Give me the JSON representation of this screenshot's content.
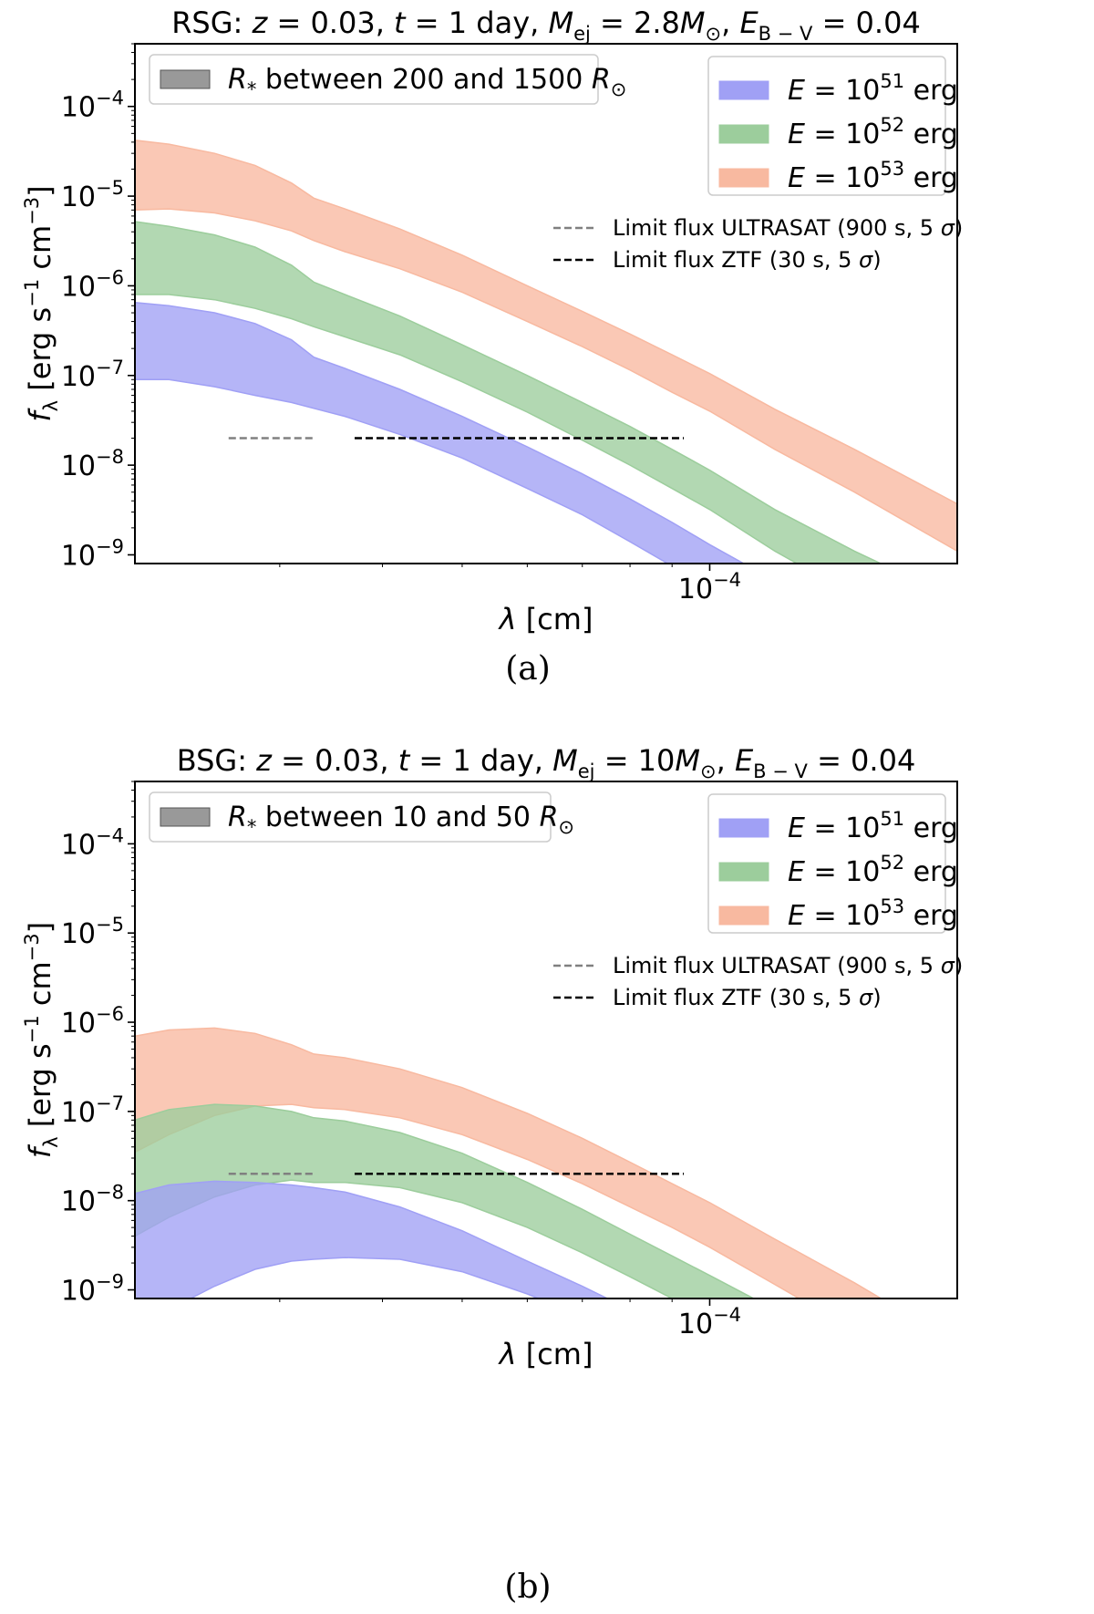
{
  "chart_data": [
    {
      "type": "area",
      "panel": "a",
      "caption": "(a)",
      "title": "RSG: z = 0.03, t = 1 day, M_ej = 2.8M⊙, E_B−V = 0.04",
      "title_parts": {
        "pre": "RSG: ",
        "z": "z",
        "z_val": " = 0.03, ",
        "t": "t",
        "t_val": " = 1 day, ",
        "M": "M",
        "M_sub": "ej",
        "M_val": " = 2.8",
        "M_unit": "M",
        "M_unit_sub": "⊙",
        "sep": ", ",
        "E": "E",
        "E_sub": "B − V",
        "E_val": " = 0.04"
      },
      "xlabel": {
        "sym": "λ",
        "unit": " [cm]"
      },
      "ylabel": {
        "sym": "f",
        "sub": "λ",
        "unit": " [erg s",
        "exp1": "−1",
        "mid": " cm",
        "exp2": "−3",
        "end": "]"
      },
      "xscale": "log",
      "yscale": "log",
      "xlim": [
        2e-05,
        0.0002
      ],
      "ylim": [
        8e-10,
        0.0005
      ],
      "yticks": [
        {
          "base": "10",
          "exp": "−4",
          "v": 0.0001
        },
        {
          "base": "10",
          "exp": "−5",
          "v": 1e-05
        },
        {
          "base": "10",
          "exp": "−6",
          "v": 1e-06
        },
        {
          "base": "10",
          "exp": "−7",
          "v": 1e-07
        },
        {
          "base": "10",
          "exp": "−8",
          "v": 1e-08
        },
        {
          "base": "10",
          "exp": "−9",
          "v": 1e-09
        }
      ],
      "xticks": [
        {
          "base": "10",
          "exp": "−4",
          "v": 0.0001
        }
      ],
      "legend_radius": {
        "sym": "R",
        "sub": "*",
        "text": " between 200 and 1500 ",
        "unit": "R",
        "unit_sub": "⊙",
        "color": "#999999"
      },
      "series": [
        {
          "name": "E = 10^51 erg",
          "label": {
            "sym": "E",
            "mid": " = 10",
            "exp": "51",
            "end": " erg"
          },
          "color": "#a0a0f5",
          "x": [
            2e-05,
            2.2e-05,
            2.5e-05,
            2.8e-05,
            3.1e-05,
            3.3e-05,
            3.6e-05,
            4.2e-05,
            5e-05,
            6e-05,
            7e-05,
            8e-05,
            9e-05,
            0.0001,
            0.00011,
            0.00012
          ],
          "upper": [
            6.5e-07,
            6e-07,
            5e-07,
            3.8e-07,
            2.5e-07,
            1.6e-07,
            1.2e-07,
            7e-08,
            3.5e-08,
            1.6e-08,
            8e-09,
            4.2e-09,
            2.3e-09,
            1.3e-09,
            8e-10,
            5e-10
          ],
          "lower": [
            9e-08,
            9e-08,
            7.5e-08,
            6e-08,
            5e-08,
            4.3e-08,
            3.5e-08,
            2.2e-08,
            1.2e-08,
            5.5e-09,
            2.8e-09,
            1.4e-09,
            7.5e-10,
            4e-10,
            2.2e-10,
            1.2e-10
          ]
        },
        {
          "name": "E = 10^52 erg",
          "label": {
            "sym": "E",
            "mid": " = 10",
            "exp": "52",
            "end": " erg"
          },
          "color": "#9ccd9c",
          "x": [
            2e-05,
            2.2e-05,
            2.5e-05,
            2.8e-05,
            3.1e-05,
            3.3e-05,
            3.6e-05,
            4.2e-05,
            5e-05,
            6e-05,
            7e-05,
            8e-05,
            9e-05,
            0.0001,
            0.00012,
            0.00015,
            0.00018
          ],
          "upper": [
            5.2e-06,
            4.6e-06,
            3.7e-06,
            2.7e-06,
            1.7e-06,
            1.1e-06,
            8e-07,
            4.6e-07,
            2.2e-07,
            1e-07,
            5e-08,
            2.7e-08,
            1.5e-08,
            8.8e-09,
            3.2e-09,
            1.1e-09,
            5e-10
          ],
          "lower": [
            8e-07,
            8e-07,
            7e-07,
            5.6e-07,
            4.3e-07,
            3.5e-07,
            2.7e-07,
            1.7e-07,
            8.5e-08,
            3.9e-08,
            1.9e-08,
            1e-08,
            5.5e-09,
            3.2e-09,
            1.1e-09,
            3.5e-10,
            1.5e-10
          ]
        },
        {
          "name": "E = 10^53 erg",
          "label": {
            "sym": "E",
            "mid": " = 10",
            "exp": "53",
            "end": " erg"
          },
          "color": "#f8b9a0",
          "x": [
            2e-05,
            2.2e-05,
            2.5e-05,
            2.8e-05,
            3.1e-05,
            3.3e-05,
            3.6e-05,
            4.2e-05,
            5e-05,
            6e-05,
            7e-05,
            8e-05,
            9e-05,
            0.0001,
            0.00012,
            0.00015,
            0.0002
          ],
          "upper": [
            4.2e-05,
            3.8e-05,
            3e-05,
            2.2e-05,
            1.4e-05,
            9.5e-06,
            7.2e-06,
            4.3e-06,
            2.2e-06,
            1e-06,
            5.2e-07,
            2.9e-07,
            1.7e-07,
            1.05e-07,
            4.2e-08,
            1.5e-08,
            3.7e-09
          ],
          "lower": [
            7e-06,
            7.2e-06,
            6.5e-06,
            5.3e-06,
            4.1e-06,
            3.2e-06,
            2.4e-06,
            1.55e-06,
            8.5e-07,
            4e-07,
            2.1e-07,
            1.15e-07,
            6.5e-08,
            4e-08,
            1.5e-08,
            5e-09,
            1.1e-09
          ]
        }
      ],
      "limits": [
        {
          "name": "Limit flux ULTRASAT (900 s, 5 σ)",
          "label": {
            "text": "Limit flux ULTRASAT (900 s, 5 ",
            "sym": "σ",
            "end": ")"
          },
          "color": "#808080",
          "x": [
            2.6e-05,
            3.3e-05
          ],
          "y": 2e-08
        },
        {
          "name": "Limit flux ZTF (30 s, 5 σ)",
          "label": {
            "text": "Limit flux ZTF (30 s, 5 ",
            "sym": "σ",
            "end": ")"
          },
          "color": "#000000",
          "x": [
            3.7e-05,
            9.3e-05
          ],
          "y": 2e-08
        }
      ]
    },
    {
      "type": "area",
      "panel": "b",
      "caption": "(b)",
      "title": "BSG: z = 0.03, t = 1 day, M_ej = 10M⊙, E_B−V = 0.04",
      "title_parts": {
        "pre": "BSG: ",
        "z": "z",
        "z_val": " = 0.03, ",
        "t": "t",
        "t_val": " = 1 day, ",
        "M": "M",
        "M_sub": "ej",
        "M_val": " = 10",
        "M_unit": "M",
        "M_unit_sub": "⊙",
        "sep": ", ",
        "E": "E",
        "E_sub": "B − V",
        "E_val": " = 0.04"
      },
      "xlabel": {
        "sym": "λ",
        "unit": " [cm]"
      },
      "ylabel": {
        "sym": "f",
        "sub": "λ",
        "unit": " [erg s",
        "exp1": "−1",
        "mid": " cm",
        "exp2": "−3",
        "end": "]"
      },
      "xscale": "log",
      "yscale": "log",
      "xlim": [
        2e-05,
        0.0002
      ],
      "ylim": [
        8e-10,
        0.0005
      ],
      "yticks": [
        {
          "base": "10",
          "exp": "−4",
          "v": 0.0001
        },
        {
          "base": "10",
          "exp": "−5",
          "v": 1e-05
        },
        {
          "base": "10",
          "exp": "−6",
          "v": 1e-06
        },
        {
          "base": "10",
          "exp": "−7",
          "v": 1e-07
        },
        {
          "base": "10",
          "exp": "−8",
          "v": 1e-08
        },
        {
          "base": "10",
          "exp": "−9",
          "v": 1e-09
        }
      ],
      "xticks": [
        {
          "base": "10",
          "exp": "−4",
          "v": 0.0001
        }
      ],
      "legend_radius": {
        "sym": "R",
        "sub": "*",
        "text": " between 10 and 50 ",
        "unit": "R",
        "unit_sub": "⊙",
        "color": "#999999"
      },
      "series": [
        {
          "name": "E = 10^51 erg",
          "label": {
            "sym": "E",
            "mid": " = 10",
            "exp": "51",
            "end": " erg"
          },
          "color": "#a0a0f5",
          "x": [
            2e-05,
            2.2e-05,
            2.5e-05,
            2.8e-05,
            3.1e-05,
            3.3e-05,
            3.6e-05,
            4.2e-05,
            5e-05,
            6e-05,
            7e-05,
            8e-05,
            9e-05
          ],
          "upper": [
            1.2e-08,
            1.5e-08,
            1.65e-08,
            1.6e-08,
            1.5e-08,
            1.4e-08,
            1.25e-08,
            8.5e-09,
            4.6e-09,
            2.1e-09,
            1.1e-09,
            6e-10,
            3.5e-10
          ],
          "lower": [
            4e-10,
            6e-10,
            1.1e-09,
            1.7e-09,
            2.1e-09,
            2.2e-09,
            2.3e-09,
            2.2e-09,
            1.6e-09,
            9e-10,
            5e-10,
            2.8e-10,
            1.6e-10
          ]
        },
        {
          "name": "E = 10^52 erg",
          "label": {
            "sym": "E",
            "mid": " = 10",
            "exp": "52",
            "end": " erg"
          },
          "color": "#9ccd9c",
          "x": [
            2e-05,
            2.2e-05,
            2.5e-05,
            2.8e-05,
            3.1e-05,
            3.3e-05,
            3.6e-05,
            4.2e-05,
            5e-05,
            6e-05,
            7e-05,
            8e-05,
            9e-05,
            0.0001,
            0.00012,
            0.00014
          ],
          "upper": [
            8e-08,
            1.05e-07,
            1.2e-07,
            1.15e-07,
            1e-07,
            8.5e-08,
            7.8e-08,
            5.8e-08,
            3.4e-08,
            1.6e-08,
            8e-09,
            4.2e-09,
            2.4e-09,
            1.45e-09,
            6e-10,
            3e-10
          ],
          "lower": [
            4e-09,
            6.5e-09,
            1.1e-08,
            1.5e-08,
            1.7e-08,
            1.6e-08,
            1.6e-08,
            1.4e-08,
            9.5e-09,
            5e-09,
            2.6e-09,
            1.4e-09,
            8e-10,
            4.6e-10,
            1.8e-10,
            8e-11
          ]
        },
        {
          "name": "E = 10^53 erg",
          "label": {
            "sym": "E",
            "mid": " = 10",
            "exp": "53",
            "end": " erg"
          },
          "color": "#f8b9a0",
          "x": [
            2e-05,
            2.2e-05,
            2.5e-05,
            2.8e-05,
            3.1e-05,
            3.3e-05,
            3.6e-05,
            4.2e-05,
            5e-05,
            6e-05,
            7e-05,
            8e-05,
            9e-05,
            0.0001,
            0.00012,
            0.00015,
            0.0002
          ],
          "upper": [
            7e-07,
            8.2e-07,
            8.6e-07,
            7.5e-07,
            5.6e-07,
            4.4e-07,
            4e-07,
            3e-07,
            1.85e-07,
            9.5e-08,
            5e-08,
            2.7e-08,
            1.55e-08,
            9.5e-09,
            3.7e-09,
            1.2e-09,
            2.5e-10
          ],
          "lower": [
            3.5e-08,
            5.5e-08,
            9e-08,
            1.15e-07,
            1.2e-07,
            1.1e-07,
            1.05e-07,
            8.5e-08,
            5.5e-08,
            2.9e-08,
            1.55e-08,
            8.5e-09,
            5e-09,
            3e-09,
            1.15e-09,
            3.5e-10,
            8e-11
          ]
        }
      ],
      "limits": [
        {
          "name": "Limit flux ULTRASAT (900 s, 5 σ)",
          "label": {
            "text": "Limit flux ULTRASAT (900 s, 5 ",
            "sym": "σ",
            "end": ")"
          },
          "color": "#808080",
          "x": [
            2.6e-05,
            3.3e-05
          ],
          "y": 2e-08
        },
        {
          "name": "Limit flux ZTF (30 s, 5 σ)",
          "label": {
            "text": "Limit flux ZTF (30 s, 5 ",
            "sym": "σ",
            "end": ")"
          },
          "color": "#000000",
          "x": [
            3.7e-05,
            9.3e-05
          ],
          "y": 2e-08
        }
      ]
    }
  ]
}
